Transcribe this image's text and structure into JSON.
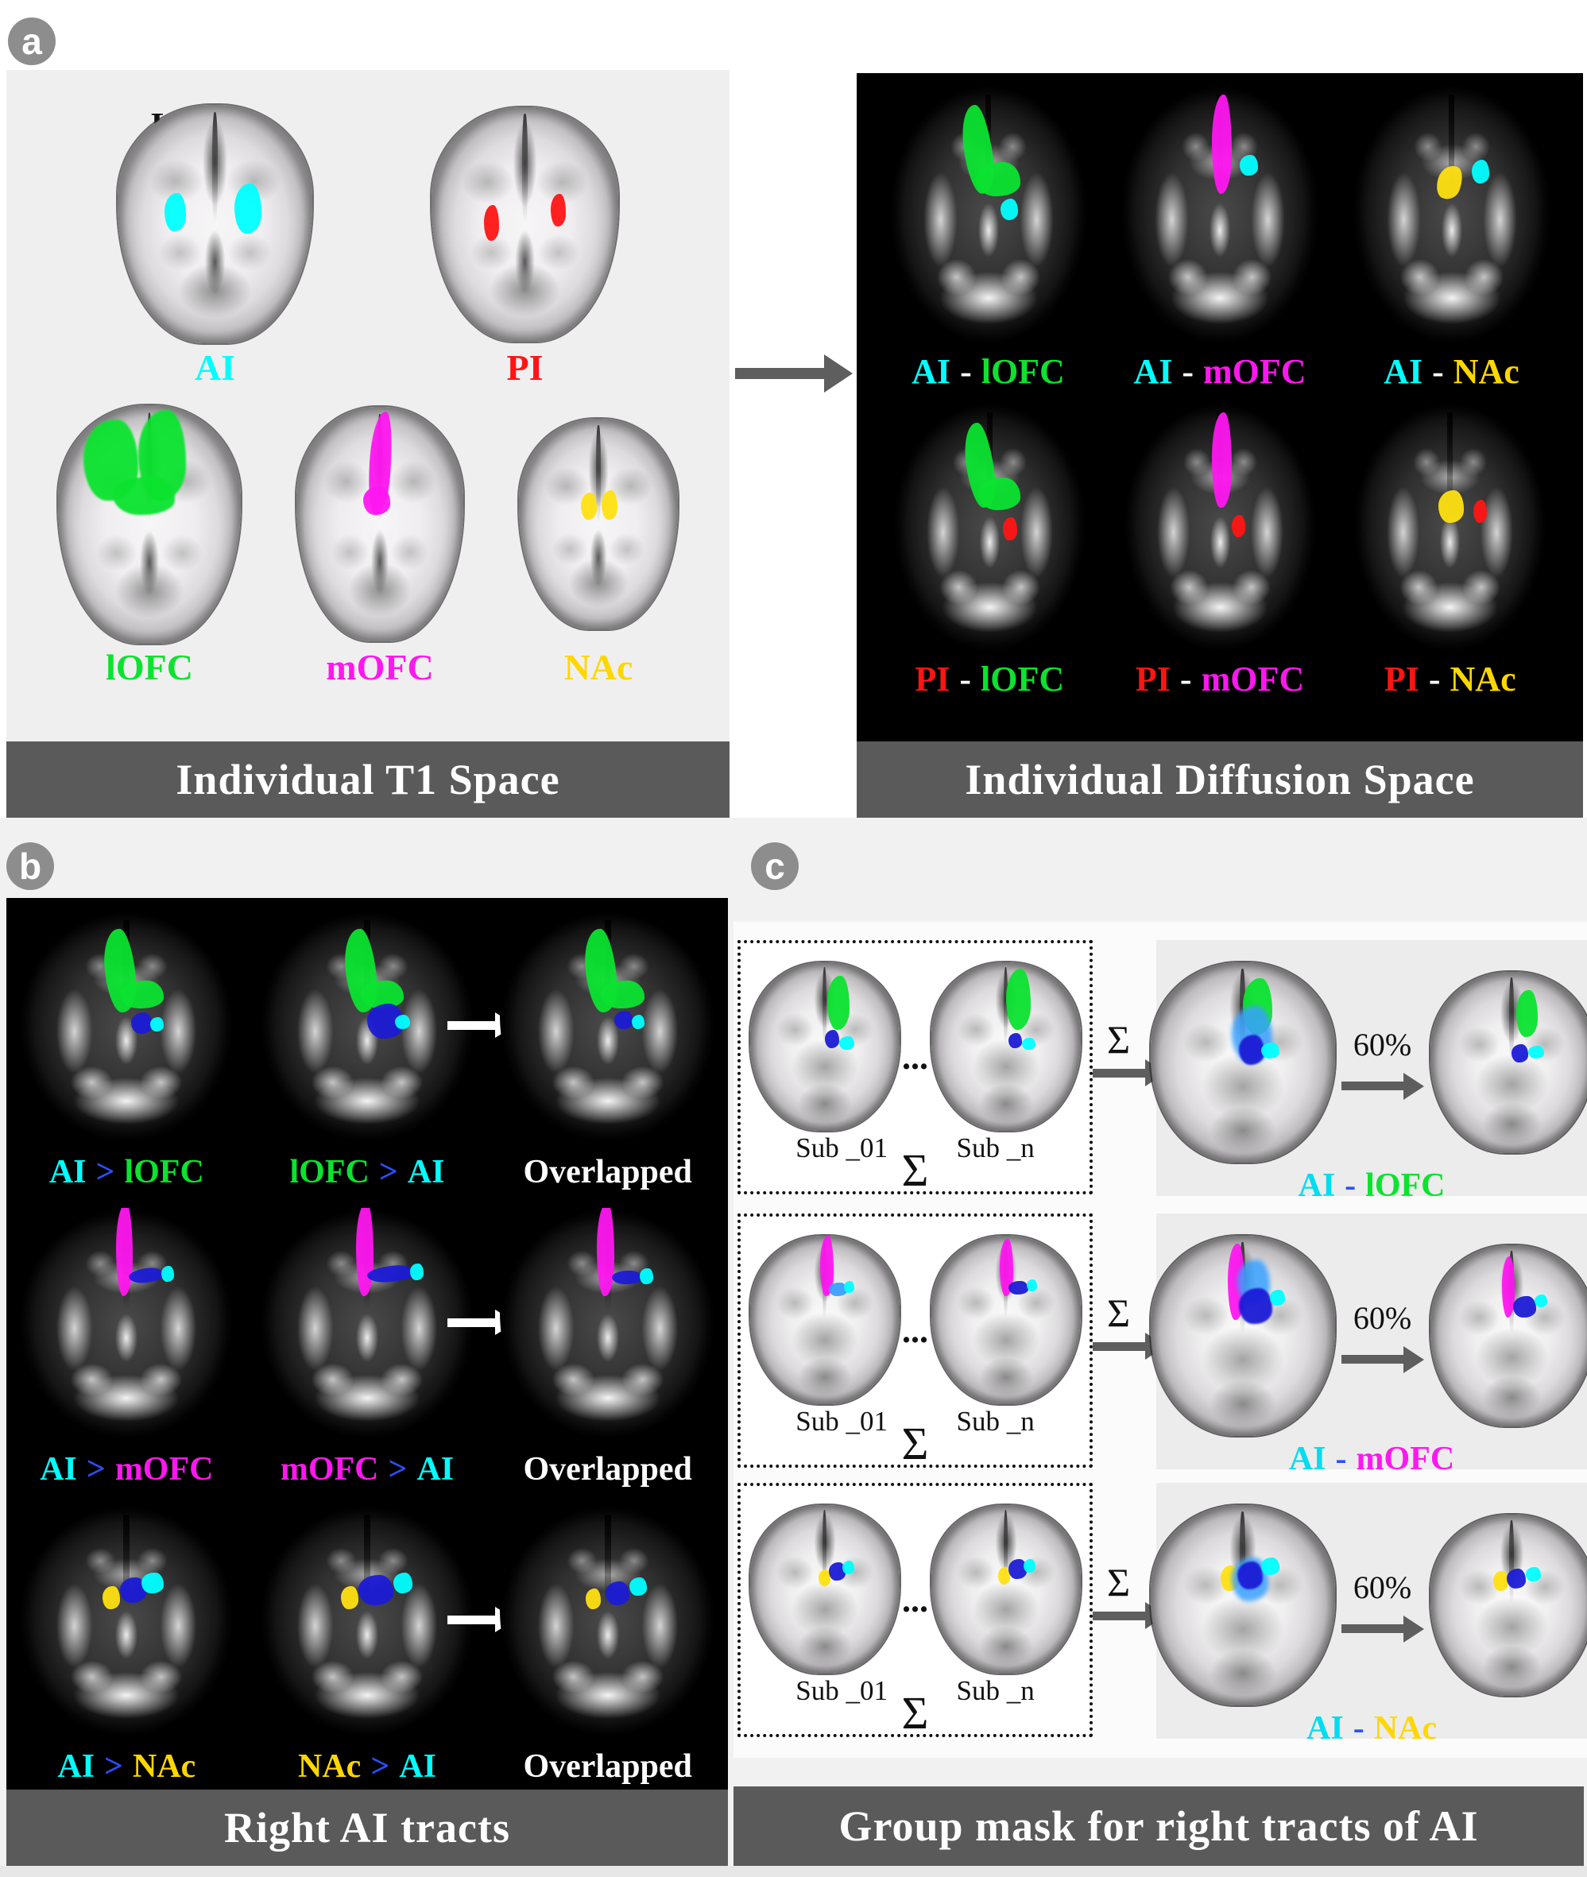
{
  "badges": {
    "a": "a",
    "b": "b",
    "c": "c"
  },
  "colors": {
    "ai_cyan": "#00ffff",
    "pi_red": "#ff1414",
    "lofc_green": "#0be32f",
    "mofc_magenta": "#ff17f0",
    "nac_yellow": "#ffd700",
    "comparison_blue": "#2b4fff",
    "banner_bg": "#5a5a5a",
    "banner_text": "#ffffff"
  },
  "panel_a": {
    "orientation_label": "L",
    "t1": {
      "banner": "Individual T1 Space",
      "row1": [
        {
          "parts": [
            {
              "text": "AI",
              "color": "#00ffff"
            }
          ]
        },
        {
          "parts": [
            {
              "text": "PI",
              "color": "#ff1414"
            }
          ]
        }
      ],
      "row2": [
        {
          "parts": [
            {
              "text": "lOFC",
              "color": "#0be32f"
            }
          ]
        },
        {
          "parts": [
            {
              "text": "mOFC",
              "color": "#ff17f0"
            }
          ]
        },
        {
          "parts": [
            {
              "text": "NAc",
              "color": "#ffd700"
            }
          ]
        }
      ]
    },
    "diffusion": {
      "banner": "Individual Diffusion Space",
      "row1": [
        {
          "parts": [
            {
              "text": "AI",
              "color": "#00ffff"
            },
            {
              "text": "-",
              "color": "#ffffff"
            },
            {
              "text": "lOFC",
              "color": "#0be32f"
            }
          ]
        },
        {
          "parts": [
            {
              "text": "AI",
              "color": "#00ffff"
            },
            {
              "text": "-",
              "color": "#ffffff"
            },
            {
              "text": "mOFC",
              "color": "#ff17f0"
            }
          ]
        },
        {
          "parts": [
            {
              "text": "AI",
              "color": "#00ffff"
            },
            {
              "text": "-",
              "color": "#ffffff"
            },
            {
              "text": "NAc",
              "color": "#ffd700"
            }
          ]
        }
      ],
      "row2": [
        {
          "parts": [
            {
              "text": "PI",
              "color": "#ff1414"
            },
            {
              "text": "-",
              "color": "#ffffff"
            },
            {
              "text": "lOFC",
              "color": "#0be32f"
            }
          ]
        },
        {
          "parts": [
            {
              "text": "PI",
              "color": "#ff1414"
            },
            {
              "text": "-",
              "color": "#ffffff"
            },
            {
              "text": "mOFC",
              "color": "#ff17f0"
            }
          ]
        },
        {
          "parts": [
            {
              "text": "PI",
              "color": "#ff1414"
            },
            {
              "text": "-",
              "color": "#ffffff"
            },
            {
              "text": "NAc",
              "color": "#ffd700"
            }
          ]
        }
      ]
    }
  },
  "panel_b": {
    "banner": "Right AI tracts",
    "rows": [
      {
        "labels": [
          {
            "parts": [
              {
                "text": "AI",
                "color": "#00ffff"
              },
              {
                "text": ">",
                "color": "#2b4fff"
              },
              {
                "text": "lOFC",
                "color": "#0be32f"
              }
            ]
          },
          {
            "parts": [
              {
                "text": "lOFC",
                "color": "#0be32f"
              },
              {
                "text": ">",
                "color": "#2b4fff"
              },
              {
                "text": "AI",
                "color": "#00ffff"
              }
            ]
          },
          {
            "parts": [
              {
                "text": "Overlapped",
                "color": "#ffffff"
              }
            ]
          }
        ]
      },
      {
        "labels": [
          {
            "parts": [
              {
                "text": "AI",
                "color": "#00ffff"
              },
              {
                "text": ">",
                "color": "#2b4fff"
              },
              {
                "text": "mOFC",
                "color": "#ff17f0"
              }
            ]
          },
          {
            "parts": [
              {
                "text": "mOFC",
                "color": "#ff17f0"
              },
              {
                "text": ">",
                "color": "#2b4fff"
              },
              {
                "text": "AI",
                "color": "#00ffff"
              }
            ]
          },
          {
            "parts": [
              {
                "text": "Overlapped",
                "color": "#ffffff"
              }
            ]
          }
        ]
      },
      {
        "labels": [
          {
            "parts": [
              {
                "text": "AI",
                "color": "#00ffff"
              },
              {
                "text": ">",
                "color": "#2b4fff"
              },
              {
                "text": "NAc",
                "color": "#ffd700"
              }
            ]
          },
          {
            "parts": [
              {
                "text": "NAc",
                "color": "#ffd700"
              },
              {
                "text": ">",
                "color": "#2b4fff"
              },
              {
                "text": "AI",
                "color": "#00ffff"
              }
            ]
          },
          {
            "parts": [
              {
                "text": "Overlapped",
                "color": "#ffffff"
              }
            ]
          }
        ]
      }
    ]
  },
  "panel_c": {
    "banner": "Group mask for right tracts of AI",
    "sum_symbol": "Σ",
    "ellipsis": "...",
    "threshold_label": "60%",
    "rows": [
      {
        "sub_left": "Sub _01",
        "sub_right": "Sub _n",
        "result": {
          "parts": [
            {
              "text": "AI",
              "color": "#00dcf0"
            },
            {
              "text": "-",
              "color": "#2b4fff"
            },
            {
              "text": "lOFC",
              "color": "#0be32f"
            }
          ]
        }
      },
      {
        "sub_left": "Sub _01",
        "sub_right": "Sub _n",
        "result": {
          "parts": [
            {
              "text": "AI",
              "color": "#00dcf0"
            },
            {
              "text": "-",
              "color": "#2b4fff"
            },
            {
              "text": "mOFC",
              "color": "#ff17f0"
            }
          ]
        }
      },
      {
        "sub_left": "Sub _01",
        "sub_right": "Sub _n",
        "result": {
          "parts": [
            {
              "text": "AI",
              "color": "#00dcf0"
            },
            {
              "text": "-",
              "color": "#2b4fff"
            },
            {
              "text": "NAc",
              "color": "#ffd700"
            }
          ]
        }
      }
    ]
  }
}
